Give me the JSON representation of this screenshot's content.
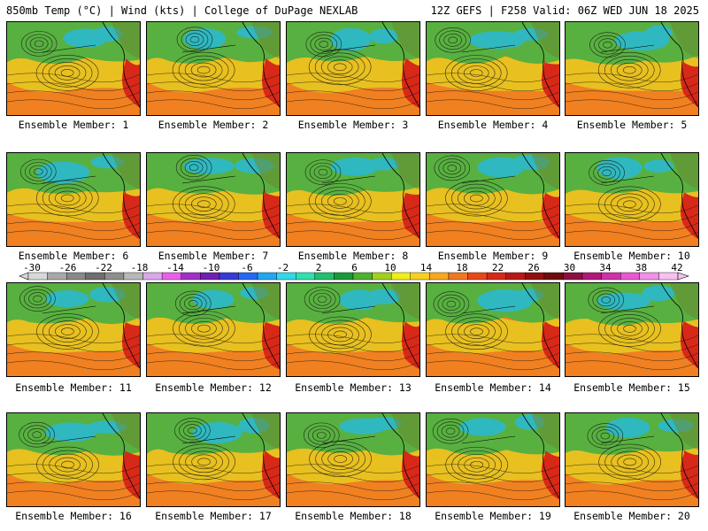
{
  "header": {
    "left": "850mb Temp (°C) | Wind (kts) | College of DuPage NEXLAB",
    "right": "12Z GEFS | F258 Valid: 06Z WED JUN 18 2025"
  },
  "panels": [
    {
      "label": "Ensemble Member: 1"
    },
    {
      "label": "Ensemble Member: 2"
    },
    {
      "label": "Ensemble Member: 3"
    },
    {
      "label": "Ensemble Member: 4"
    },
    {
      "label": "Ensemble Member: 5"
    },
    {
      "label": "Ensemble Member: 6"
    },
    {
      "label": "Ensemble Member: 7"
    },
    {
      "label": "Ensemble Member: 8"
    },
    {
      "label": "Ensemble Member: 9"
    },
    {
      "label": "Ensemble Member: 10"
    },
    {
      "label": "Ensemble Member: 11"
    },
    {
      "label": "Ensemble Member: 12"
    },
    {
      "label": "Ensemble Member: 13"
    },
    {
      "label": "Ensemble Member: 14"
    },
    {
      "label": "Ensemble Member: 15"
    },
    {
      "label": "Ensemble Member: 16"
    },
    {
      "label": "Ensemble Member: 17"
    },
    {
      "label": "Ensemble Member: 18"
    },
    {
      "label": "Ensemble Member: 19"
    },
    {
      "label": "Ensemble Member: 20"
    }
  ],
  "colorbar": {
    "ticks": [
      "-30",
      "-26",
      "-22",
      "-18",
      "-14",
      "-10",
      "-6",
      "-2",
      "2",
      "6",
      "10",
      "14",
      "18",
      "22",
      "26",
      "30",
      "34",
      "38",
      "42"
    ],
    "colors": [
      "#d8d8d8",
      "#a8a8a8",
      "#888888",
      "#6e6e6e",
      "#8e8e8e",
      "#b8b8b8",
      "#d8a8e8",
      "#e860e8",
      "#a030c8",
      "#7020b0",
      "#3838d8",
      "#2868f0",
      "#20a8f0",
      "#30d8e8",
      "#30e0b0",
      "#20c070",
      "#189a38",
      "#50b030",
      "#a0d020",
      "#f0f018",
      "#f8d020",
      "#f8a820",
      "#f07820",
      "#e84818",
      "#d82818",
      "#b81818",
      "#901010",
      "#700c0c",
      "#8a1040",
      "#b01878",
      "#d030a8",
      "#e858d0",
      "#f090e8",
      "#f8c0f0"
    ]
  },
  "map_colors": {
    "warm": "#f08020",
    "yellow": "#e8c020",
    "green": "#58b040",
    "cyan": "#30b8c0",
    "hot": "#d82818",
    "land": "#6a8a30"
  }
}
